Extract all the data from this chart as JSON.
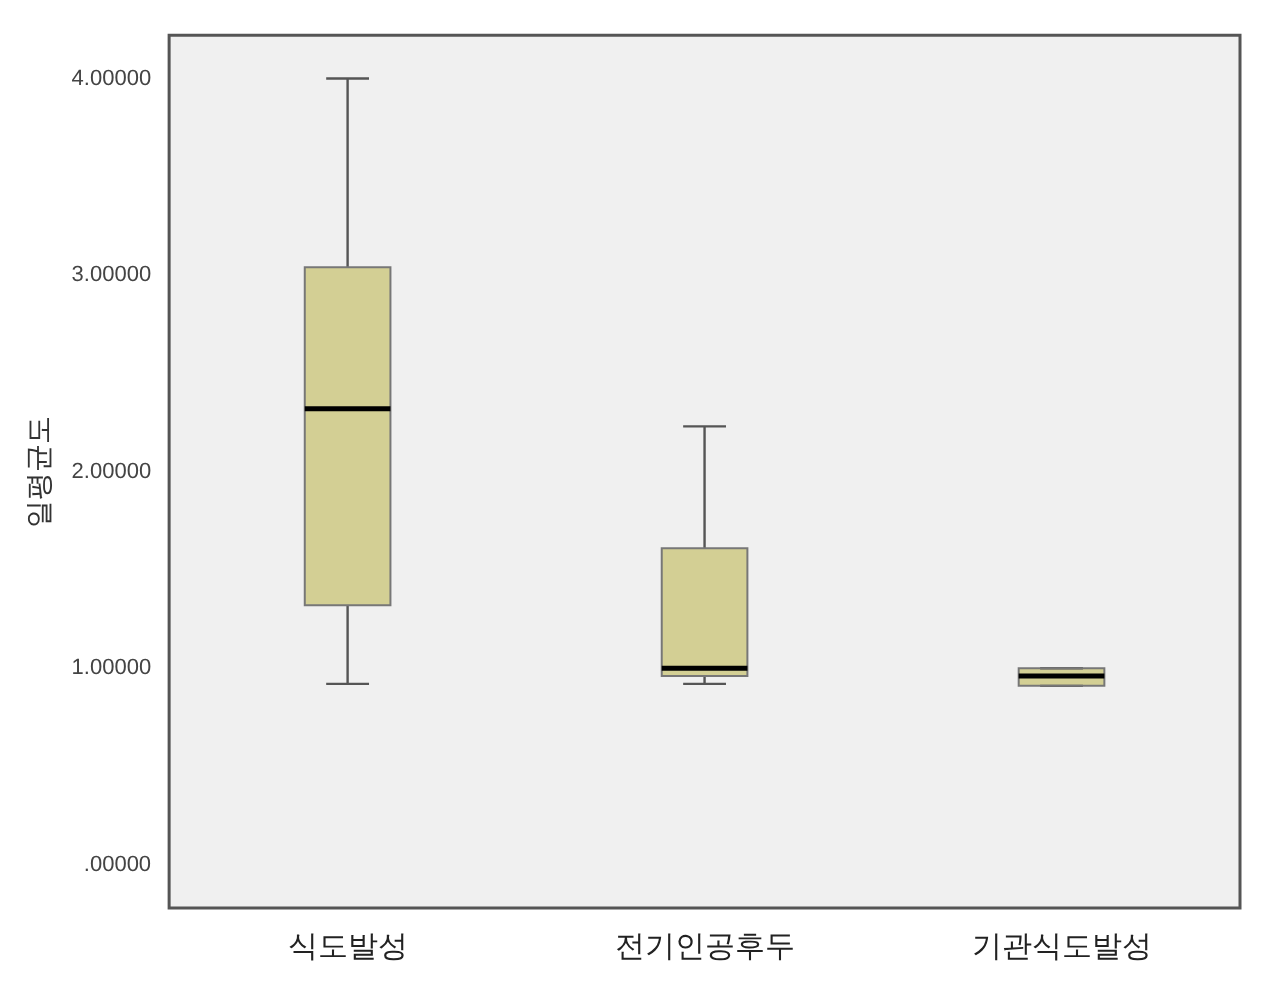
{
  "chart_data": {
    "type": "box",
    "ylabel": "일평균도",
    "categories": [
      "식도발성",
      "전기인공후두",
      "기관식도발성"
    ],
    "boxes": [
      {
        "low": 0.92,
        "q1": 1.32,
        "median": 2.32,
        "q3": 3.04,
        "high": 4.0
      },
      {
        "low": 0.92,
        "q1": 0.96,
        "median": 1.0,
        "q3": 1.61,
        "high": 2.23
      },
      {
        "low": 0.91,
        "q1": 0.91,
        "median": 0.96,
        "q3": 1.0,
        "high": 1.0
      }
    ],
    "color": "#d3cf94",
    "ylim": [
      -0.22,
      4.22
    ],
    "yticks": [
      {
        "value": 0,
        "label": ".00000"
      },
      {
        "value": 1,
        "label": "1.00000"
      },
      {
        "value": 2,
        "label": "2.00000"
      },
      {
        "value": 3,
        "label": "3.00000"
      },
      {
        "value": 4,
        "label": "4.00000"
      }
    ],
    "grid": false,
    "legend": false
  }
}
